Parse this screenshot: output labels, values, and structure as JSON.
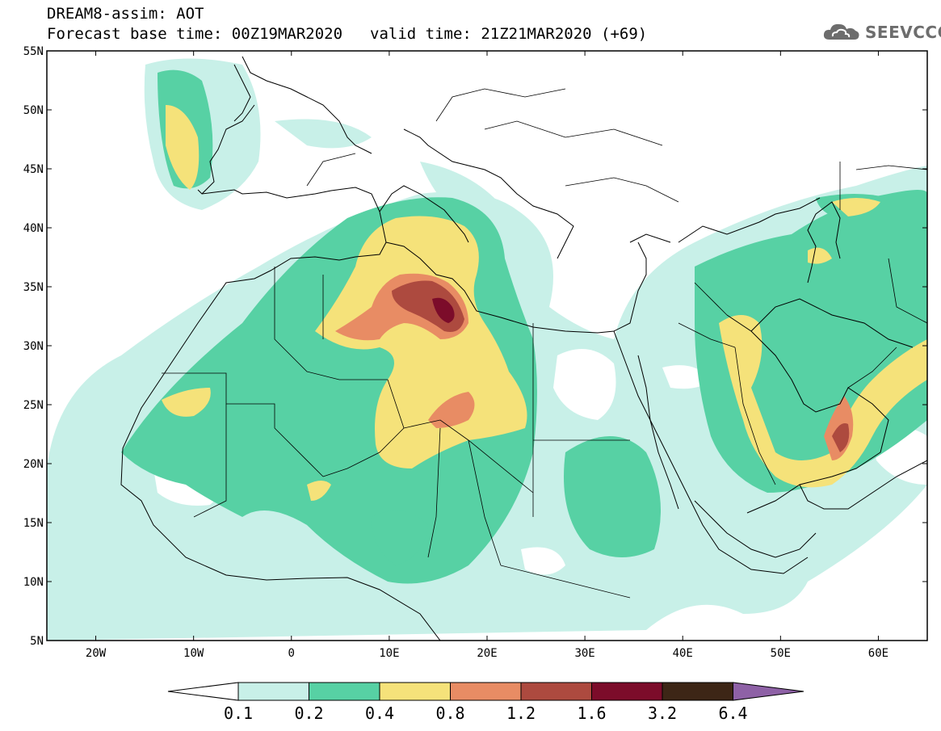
{
  "title": {
    "line1": "DREAM8-assim: AOT",
    "base_time": "Forecast base time: 00Z19MAR2020",
    "valid_time": "valid time: 21Z21MAR2020 (+69)"
  },
  "logo": {
    "text": "SEEVCCC",
    "icon": "cloud-icon"
  },
  "map": {
    "lon_range": [
      -25,
      65
    ],
    "lat_range": [
      5,
      55
    ],
    "lon_ticks": [
      {
        "value": -20,
        "label": "20W"
      },
      {
        "value": -10,
        "label": "10W"
      },
      {
        "value": 0,
        "label": "0"
      },
      {
        "value": 10,
        "label": "10E"
      },
      {
        "value": 20,
        "label": "20E"
      },
      {
        "value": 30,
        "label": "30E"
      },
      {
        "value": 40,
        "label": "40E"
      },
      {
        "value": 50,
        "label": "50E"
      },
      {
        "value": 60,
        "label": "60E"
      }
    ],
    "lat_ticks": [
      {
        "value": 55,
        "label": "55N"
      },
      {
        "value": 50,
        "label": "50N"
      },
      {
        "value": 45,
        "label": "45N"
      },
      {
        "value": 40,
        "label": "40N"
      },
      {
        "value": 35,
        "label": "35N"
      },
      {
        "value": 30,
        "label": "30N"
      },
      {
        "value": 25,
        "label": "25N"
      },
      {
        "value": 20,
        "label": "20N"
      },
      {
        "value": 15,
        "label": "15N"
      },
      {
        "value": 10,
        "label": "10N"
      },
      {
        "value": 5,
        "label": "5N"
      }
    ]
  },
  "colorbar": {
    "labels": [
      "0.1",
      "0.2",
      "0.4",
      "0.8",
      "1.2",
      "1.6",
      "3.2",
      "6.4"
    ],
    "colors": [
      "#ffffff",
      "#c8f0e8",
      "#57d1a4",
      "#f5e27a",
      "#e88c64",
      "#ad4a3f",
      "#7c0c2a",
      "#3d2616",
      "#8e61a6"
    ]
  }
}
